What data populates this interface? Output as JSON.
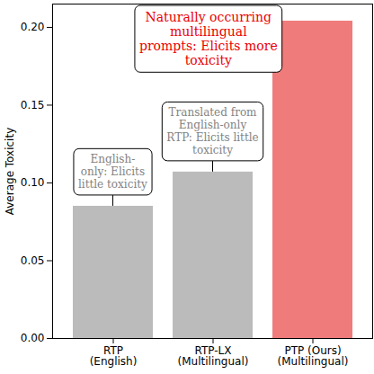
{
  "chart_data": {
    "type": "bar",
    "y_label": "Average Toxicity",
    "categories": [
      "RTP\n(English)",
      "RTP-LX\n(Multilingual)",
      "PTP (Ours)\n(Multilingual)"
    ],
    "values": [
      0.085,
      0.107,
      0.204
    ],
    "colors": [
      "#bbbbbb",
      "#bbbbbb",
      "#ef7b7b"
    ],
    "ylim": [
      0,
      0.215
    ],
    "yticks": [
      {
        "value": 0,
        "label": "0.00"
      },
      {
        "value": 0.05,
        "label": "0.05"
      },
      {
        "value": 0.1,
        "label": "0.10"
      },
      {
        "value": 0.15,
        "label": "0.15"
      },
      {
        "value": 0.2,
        "label": "0.20"
      }
    ],
    "annotations": [
      {
        "category": "RTP\n(English)",
        "text": "English-\nonly: Elicits\nlittle toxicity"
      },
      {
        "category": "RTP-LX\n(Multilingual)",
        "text": "Translated from\nEnglish-only\nRTP: Elicits little\ntoxicity"
      },
      {
        "category": "PTP (Ours)\n(Multilingual)",
        "text": "Naturally occurring\nmultilingual\nprompts: Elicits more\ntoxicity"
      }
    ]
  }
}
